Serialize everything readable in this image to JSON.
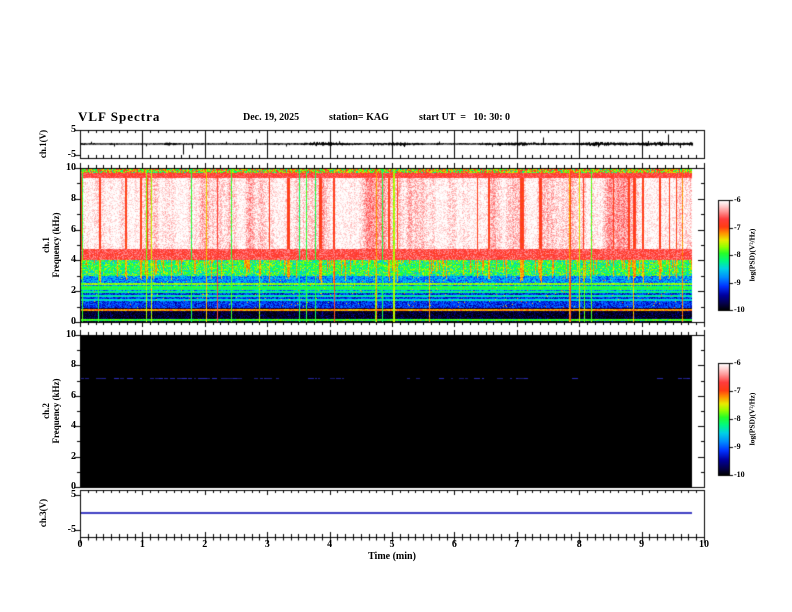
{
  "header": {
    "title": "VLF Spectra",
    "date": "Dec. 19, 2025",
    "station": "station= KAG",
    "start_ut": "start UT  =   10: 30: 0"
  },
  "axes": {
    "time": {
      "label": "Time (min)",
      "tick_labels": [
        "0",
        "1",
        "2",
        "3",
        "4",
        "5",
        "6",
        "7",
        "8",
        "9",
        "10"
      ],
      "min": 0,
      "max": 10,
      "minor_per_major": 8
    },
    "ch1_voltage": {
      "label": "ch.1(V)",
      "tick_labels": [
        "5",
        "-5"
      ],
      "min": -5,
      "max": 5
    },
    "ch1_freq": {
      "line1": "ch.1",
      "line2": "Frequency (kHz)",
      "tick_labels": [
        "0",
        "2",
        "4",
        "6",
        "8",
        "10"
      ],
      "min": 0,
      "max": 10
    },
    "ch2_freq": {
      "line1": "ch.2",
      "line2": "Frequency (kHz)",
      "tick_labels": [
        "0",
        "2",
        "4",
        "6",
        "8",
        "10"
      ],
      "min": 0,
      "max": 10
    },
    "ch3_voltage": {
      "label": "ch.3(V)",
      "tick_labels": [
        "5",
        "-5"
      ],
      "min": -5,
      "max": 5
    }
  },
  "colorbars": [
    {
      "label": "log(PSD)(V²/Hz)",
      "tick_labels": [
        "-6",
        "-7",
        "-8",
        "-9",
        "-10"
      ],
      "min": -10,
      "max": -6
    },
    {
      "label": "log(PSD)(V²/Hz)",
      "tick_labels": [
        "-6",
        "-7",
        "-8",
        "-9",
        "-10"
      ],
      "min": -10,
      "max": -6
    }
  ],
  "render_seed": 20251219,
  "chart_data": [
    {
      "type": "line",
      "name": "ch1_voltage_waveform",
      "ylabel": "ch.1(V)",
      "ylim": [
        -5,
        5
      ],
      "x_range_min": [
        0,
        9.81
      ],
      "baseline_v": 0,
      "noise_amplitude_v": 0.45,
      "spikes": [
        {
          "t": 0.18,
          "v": 0.9
        },
        {
          "t": 0.55,
          "v": -1.0
        },
        {
          "t": 1.05,
          "v": -0.9
        },
        {
          "t": 1.65,
          "v": -4.2
        },
        {
          "t": 1.79,
          "v": -1.8
        },
        {
          "t": 2.34,
          "v": 0.9
        },
        {
          "t": 2.82,
          "v": 1.9
        },
        {
          "t": 3.3,
          "v": -1.0
        },
        {
          "t": 4.15,
          "v": 1.1
        },
        {
          "t": 4.7,
          "v": -0.9
        },
        {
          "t": 5.2,
          "v": -1.2
        },
        {
          "t": 5.75,
          "v": 1.0
        },
        {
          "t": 6.6,
          "v": -1.1
        },
        {
          "t": 7.42,
          "v": 2.6
        },
        {
          "t": 8.3,
          "v": -1.3
        },
        {
          "t": 9.1,
          "v": 1.2
        },
        {
          "t": 9.42,
          "v": 3.8
        },
        {
          "t": 9.62,
          "v": -1.6
        }
      ]
    },
    {
      "type": "heatmap",
      "name": "ch1_spectrogram",
      "ylabel": "Frequency (kHz)",
      "ylim_khz": [
        0,
        10
      ],
      "xlim_min": [
        0,
        10
      ],
      "data_end_min": 9.81,
      "colorscale": {
        "label": "log(PSD)(V²/Hz)",
        "min": -10,
        "max": -6
      },
      "bands": [
        {
          "f_khz": [
            9.7,
            10.0
          ],
          "psd": [
            -8.4,
            -6.6
          ],
          "style": "speckle"
        },
        {
          "f_khz": [
            9.35,
            9.7
          ],
          "psd": [
            -6.9,
            -6.5
          ],
          "style": "edge"
        },
        {
          "f_khz": [
            4.75,
            9.35
          ],
          "psd": [
            -6.6,
            -6.0
          ],
          "style": "striated"
        },
        {
          "f_khz": [
            4.0,
            4.75
          ],
          "psd": [
            -6.9,
            -6.4
          ],
          "style": "edge"
        },
        {
          "f_khz": [
            3.0,
            4.0
          ],
          "psd": [
            -8.7,
            -7.5
          ],
          "style": "speckle"
        },
        {
          "f_khz": [
            2.0,
            3.0
          ],
          "psd": [
            -9.2,
            -8.4
          ],
          "style": "speckle"
        },
        {
          "f_khz": [
            0.9,
            2.0
          ],
          "psd": [
            -9.5,
            -8.8
          ],
          "style": "speckle"
        },
        {
          "f_khz": [
            0.0,
            0.9
          ],
          "psd": [
            -10.0,
            -9.3
          ],
          "style": "dark"
        }
      ],
      "h_lines": [
        {
          "f_khz": 3.6,
          "psd": -8.3
        },
        {
          "f_khz": 3.35,
          "psd": -8.35
        },
        {
          "f_khz": 2.45,
          "psd": -7.7
        },
        {
          "f_khz": 2.3,
          "psd": -8.0
        },
        {
          "f_khz": 2.15,
          "psd": -8.05
        },
        {
          "f_khz": 1.95,
          "psd": -8.2
        },
        {
          "f_khz": 1.7,
          "psd": -8.3
        },
        {
          "f_khz": 1.45,
          "psd": -8.45
        },
        {
          "f_khz": 0.78,
          "psd": -7.2
        },
        {
          "f_khz": 0.15,
          "psd": -7.9
        }
      ],
      "vertical_streak_count": 26
    },
    {
      "type": "heatmap",
      "name": "ch2_spectrogram",
      "ylabel": "Frequency (kHz)",
      "ylim_khz": [
        0,
        10
      ],
      "xlim_min": [
        0,
        10
      ],
      "data_end_min": 9.81,
      "colorscale": {
        "label": "log(PSD)(V²/Hz)",
        "min": -10,
        "max": -6
      },
      "background_psd": -10,
      "h_lines": [
        {
          "f_khz": 7.15,
          "psd": -9.2,
          "style": "dashed",
          "denser_before_min": 3
        }
      ]
    },
    {
      "type": "line",
      "name": "ch3_voltage_waveform",
      "ylabel": "ch.3(V)",
      "ylim": [
        -5,
        5
      ],
      "x_range_min": [
        0,
        9.81
      ],
      "constant_v": 0
    }
  ]
}
